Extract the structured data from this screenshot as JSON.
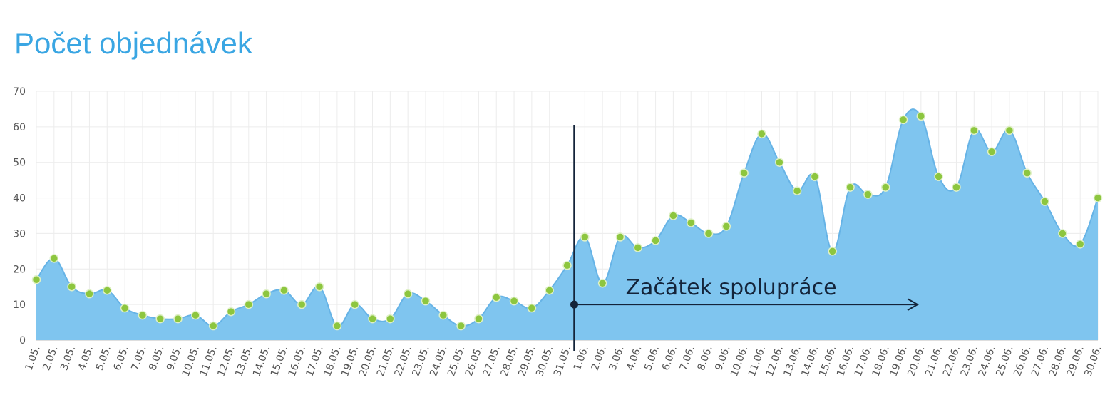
{
  "header": {
    "title": "Počet objednávek"
  },
  "annotation": {
    "label": "Začátek spolupráce",
    "at_category": "31.05.",
    "arrow_to_category": "19.06.",
    "arrow_at_value": 10
  },
  "colors": {
    "title": "#3aa6e3",
    "area": "#7fc5ef",
    "line": "#66b3e6",
    "marker": "#8dc63f",
    "grid": "#ececec",
    "annotation": "#14243a"
  },
  "chart_data": {
    "type": "area",
    "title": "Počet objednávek",
    "xlabel": "",
    "ylabel": "",
    "ylim": [
      0,
      70
    ],
    "yticks": [
      "0",
      "10",
      "20",
      "30",
      "40",
      "50",
      "60",
      "70"
    ],
    "grid": true,
    "categories": [
      "1.05.",
      "2.05.",
      "3.05.",
      "4.05.",
      "5.05.",
      "6.05.",
      "7.05.",
      "8.05.",
      "9.05.",
      "10.05.",
      "11.05.",
      "12.05.",
      "13.05.",
      "14.05.",
      "15.05.",
      "16.05.",
      "17.05.",
      "18.05.",
      "19.05.",
      "20.05.",
      "21.05.",
      "22.05.",
      "23.05.",
      "24.05.",
      "25.05.",
      "26.05.",
      "27.05.",
      "28.05.",
      "29.05.",
      "30.05.",
      "31.05.",
      "1.06.",
      "2.06.",
      "3.06.",
      "4.06.",
      "5.06.",
      "6.06.",
      "7.06.",
      "8.06.",
      "9.06.",
      "10.06.",
      "11.06.",
      "12.06.",
      "13.06.",
      "14.06.",
      "15.06.",
      "16.06.",
      "17.06.",
      "18.06.",
      "19.06.",
      "20.06.",
      "21.06.",
      "22.06.",
      "23.06.",
      "24.06.",
      "25.06.",
      "26.06.",
      "27.06.",
      "28.06.",
      "29.06.",
      "30.06."
    ],
    "values": [
      17,
      23,
      15,
      13,
      14,
      9,
      7,
      6,
      6,
      7,
      4,
      8,
      10,
      13,
      14,
      10,
      15,
      4,
      10,
      6,
      6,
      13,
      11,
      7,
      4,
      6,
      12,
      11,
      9,
      14,
      21,
      29,
      16,
      29,
      26,
      28,
      35,
      33,
      30,
      32,
      47,
      58,
      50,
      42,
      46,
      25,
      43,
      41,
      43,
      62,
      63,
      46,
      43,
      59,
      53,
      59,
      47,
      39,
      30,
      27,
      40
    ]
  }
}
